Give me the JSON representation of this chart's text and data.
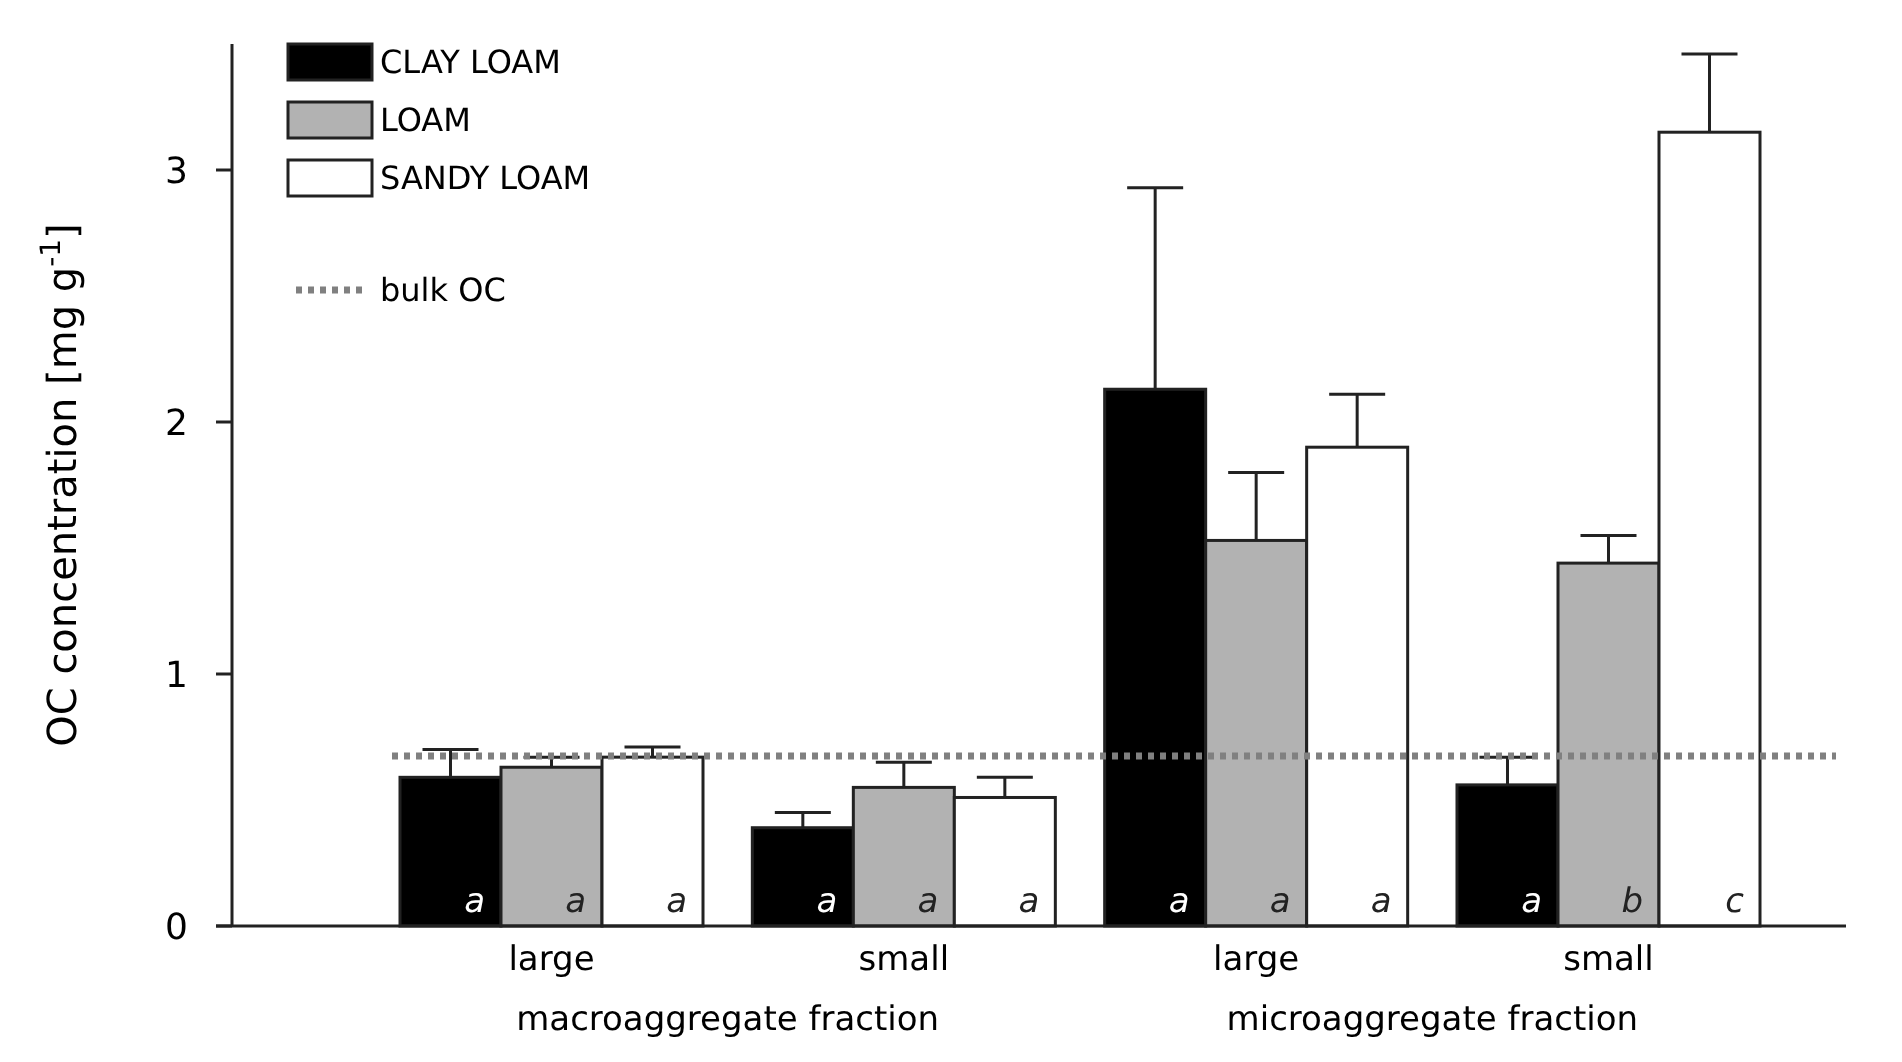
{
  "chart_data": {
    "type": "bar",
    "ylabel": "OC concentration [mg g$^{-1}$]",
    "categories": [
      "large",
      "small",
      "large",
      "small"
    ],
    "series": [
      {
        "name": "CLAY LOAM",
        "color": "#000000",
        "values": [
          0.59,
          0.39,
          2.13,
          0.56
        ],
        "errors": [
          [
            0.59,
            0.7
          ],
          [
            0.39,
            0.45
          ],
          [
            2.13,
            2.93
          ],
          [
            0.56,
            0.67
          ]
        ],
        "value_labels": [
          "a",
          "a",
          "a",
          "a"
        ]
      },
      {
        "name": "LOAM",
        "color": "#b2b2b2",
        "values": [
          0.63,
          0.55,
          1.53,
          1.44
        ],
        "errors": [
          [
            0.63,
            0.67
          ],
          [
            0.55,
            0.65
          ],
          [
            1.53,
            1.8
          ],
          [
            1.44,
            1.55
          ]
        ],
        "value_labels": [
          "a",
          "a",
          "a",
          "b"
        ]
      },
      {
        "name": "SANDY LOAM",
        "color": "#ffffff",
        "values": [
          0.67,
          0.51,
          1.9,
          3.15
        ],
        "errors": [
          [
            0.67,
            0.71
          ],
          [
            0.51,
            0.59
          ],
          [
            1.9,
            2.11
          ],
          [
            3.15,
            3.46
          ]
        ],
        "value_labels": [
          "a",
          "a",
          "a",
          "c"
        ]
      }
    ],
    "ref_lines": [
      {
        "axis": "y",
        "value": 0.675,
        "label": "bulk OC",
        "color": "#808080",
        "line_style": "dotted"
      }
    ],
    "annotations": [
      "macroaggregate fraction",
      "microaggregate fraction"
    ],
    "ylim": [
      0,
      3.5
    ],
    "yticks": [
      0,
      1,
      2,
      3
    ],
    "legend": "top left",
    "grid": false
  }
}
